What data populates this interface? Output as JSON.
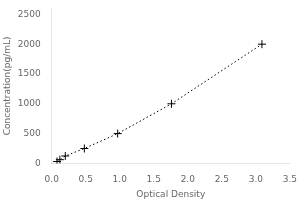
{
  "chart_data": {
    "type": "line",
    "xlabel": "Optical Density",
    "ylabel": "Concentration(pg/mL)",
    "x": [
      0.078,
      0.12,
      0.2,
      0.48,
      0.97,
      1.76,
      3.09
    ],
    "values": [
      31.25,
      62.5,
      125,
      250,
      500,
      1000,
      2000
    ],
    "color": "black",
    "marker": "+",
    "line_style": "dotted",
    "xlim": [
      0,
      3.5
    ],
    "ylim": [
      0,
      2600
    ],
    "xticks": [
      {
        "value": 0,
        "label": "0.0"
      },
      0.5,
      {
        "value": 1.0,
        "label": "1.0"
      },
      1.5,
      {
        "value": 2.0,
        "label": "2.0"
      },
      2.5,
      {
        "value": 3.0,
        "label": "3.0"
      },
      3.5
    ],
    "yticks": [
      0,
      500,
      1000,
      1500,
      2000,
      2500
    ],
    "grid": false
  }
}
